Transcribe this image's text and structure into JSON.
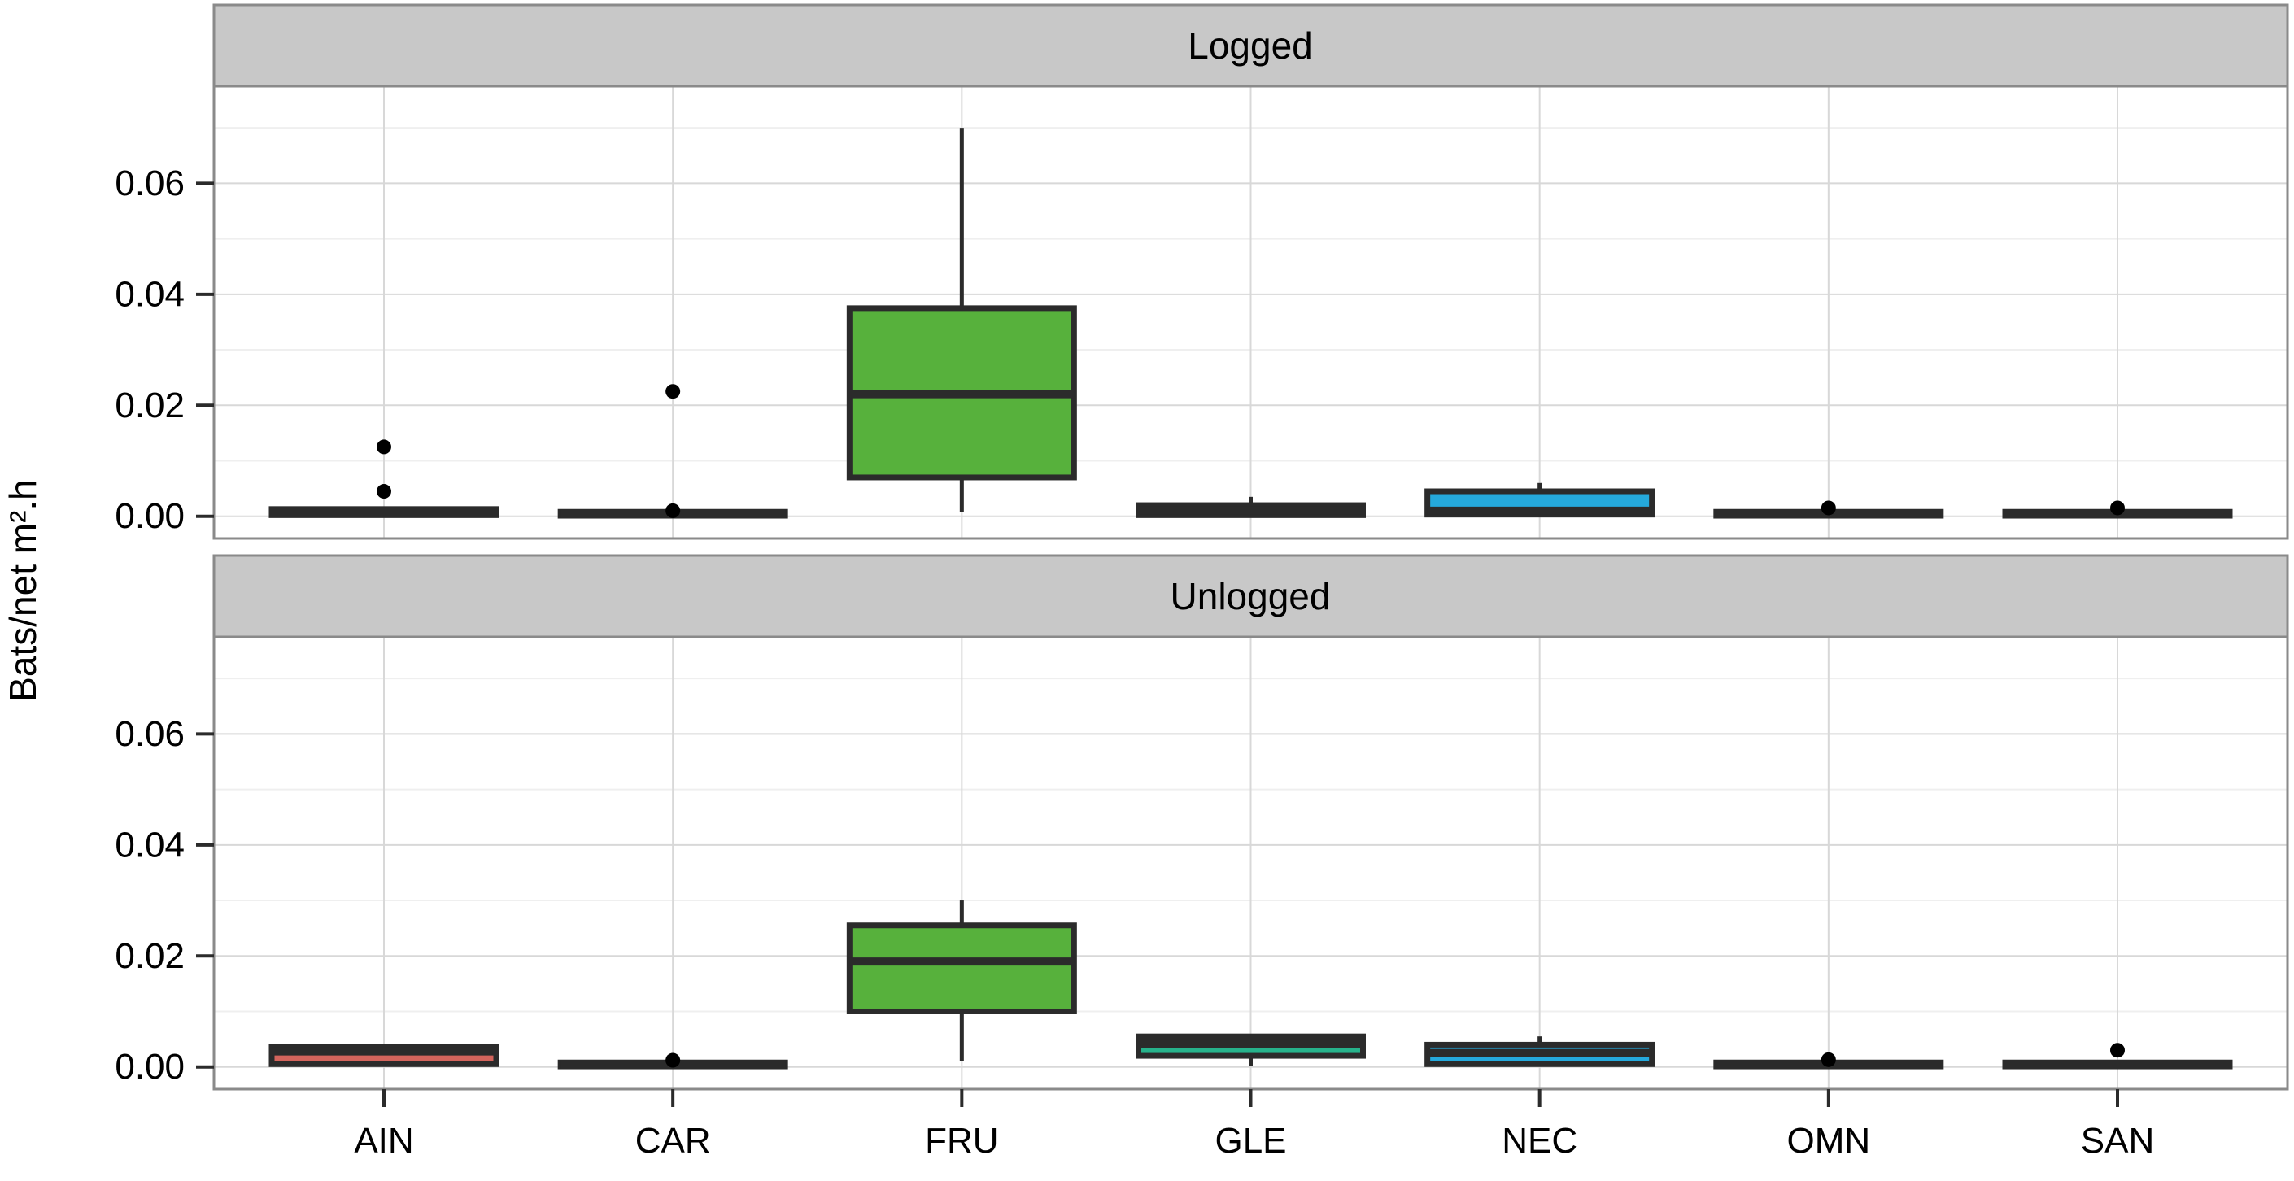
{
  "chart_data": {
    "type": "boxplot",
    "ylabel": "Bats/net m².h",
    "categories": [
      "AIN",
      "CAR",
      "FRU",
      "GLE",
      "NEC",
      "OMN",
      "SAN"
    ],
    "y_ticks": [
      0.0,
      0.02,
      0.04,
      0.06
    ],
    "y_tick_labels": [
      "0.00",
      "0.02",
      "0.04",
      "0.06"
    ],
    "y_minor_ticks": [
      0.01,
      0.03,
      0.05,
      0.07
    ],
    "ylim": [
      -0.004,
      0.0775
    ],
    "grid": true,
    "legend": "none",
    "facets": [
      {
        "label": "Logged",
        "boxes": [
          {
            "category": "AIN",
            "whisker_low": 0.0002,
            "q1": 0.0002,
            "median": 0.0007,
            "q3": 0.0013,
            "whisker_high": 0.0013,
            "outliers": [
              0.0045,
              0.0125
            ],
            "fill": "#d4645c"
          },
          {
            "category": "CAR",
            "whisker_low": 0.0001,
            "q1": 0.0001,
            "median": 0.0004,
            "q3": 0.0008,
            "whisker_high": 0.0008,
            "outliers": [
              0.001,
              0.0225
            ],
            "fill": "#555555"
          },
          {
            "category": "FRU",
            "whisker_low": 0.0008,
            "q1": 0.007,
            "median": 0.022,
            "q3": 0.0375,
            "whisker_high": 0.07,
            "outliers": [],
            "fill": "#57b13c"
          },
          {
            "category": "GLE",
            "whisker_low": 0.0002,
            "q1": 0.0002,
            "median": 0.001,
            "q3": 0.002,
            "whisker_high": 0.0035,
            "outliers": [],
            "fill": "#555555"
          },
          {
            "category": "NEC",
            "whisker_low": 0.0003,
            "q1": 0.0003,
            "median": 0.001,
            "q3": 0.0045,
            "whisker_high": 0.006,
            "outliers": [],
            "fill": "#25a9dc"
          },
          {
            "category": "OMN",
            "whisker_low": 0.0001,
            "q1": 0.0001,
            "median": 0.0004,
            "q3": 0.0008,
            "whisker_high": 0.0008,
            "outliers": [
              0.0015
            ],
            "fill": "#555555"
          },
          {
            "category": "SAN",
            "whisker_low": 0.0001,
            "q1": 0.0001,
            "median": 0.0004,
            "q3": 0.0008,
            "whisker_high": 0.0008,
            "outliers": [
              0.0015
            ],
            "fill": "#555555"
          }
        ]
      },
      {
        "label": "Unlogged",
        "boxes": [
          {
            "category": "AIN",
            "whisker_low": 0.0005,
            "q1": 0.0005,
            "median": 0.0028,
            "q3": 0.0036,
            "whisker_high": 0.0036,
            "outliers": [],
            "fill": "#d4645c"
          },
          {
            "category": "CAR",
            "whisker_low": 0.0001,
            "q1": 0.0001,
            "median": 0.0004,
            "q3": 0.0008,
            "whisker_high": 0.0008,
            "outliers": [
              0.0012
            ],
            "fill": "#555555"
          },
          {
            "category": "FRU",
            "whisker_low": 0.001,
            "q1": 0.01,
            "median": 0.019,
            "q3": 0.0255,
            "whisker_high": 0.03,
            "outliers": [],
            "fill": "#57b13c"
          },
          {
            "category": "GLE",
            "whisker_low": 0.0002,
            "q1": 0.002,
            "median": 0.0042,
            "q3": 0.0055,
            "whisker_high": 0.0055,
            "outliers": [],
            "fill": "#26b28b"
          },
          {
            "category": "NEC",
            "whisker_low": 0.0005,
            "q1": 0.0005,
            "median": 0.0025,
            "q3": 0.004,
            "whisker_high": 0.0055,
            "outliers": [],
            "fill": "#25a9dc"
          },
          {
            "category": "OMN",
            "whisker_low": 0.0001,
            "q1": 0.0001,
            "median": 0.0004,
            "q3": 0.0008,
            "whisker_high": 0.0008,
            "outliers": [
              0.0013
            ],
            "fill": "#555555"
          },
          {
            "category": "SAN",
            "whisker_low": 0.0001,
            "q1": 0.0001,
            "median": 0.0004,
            "q3": 0.0008,
            "whisker_high": 0.0008,
            "outliers": [
              0.003
            ],
            "fill": "#555555"
          }
        ]
      }
    ]
  }
}
